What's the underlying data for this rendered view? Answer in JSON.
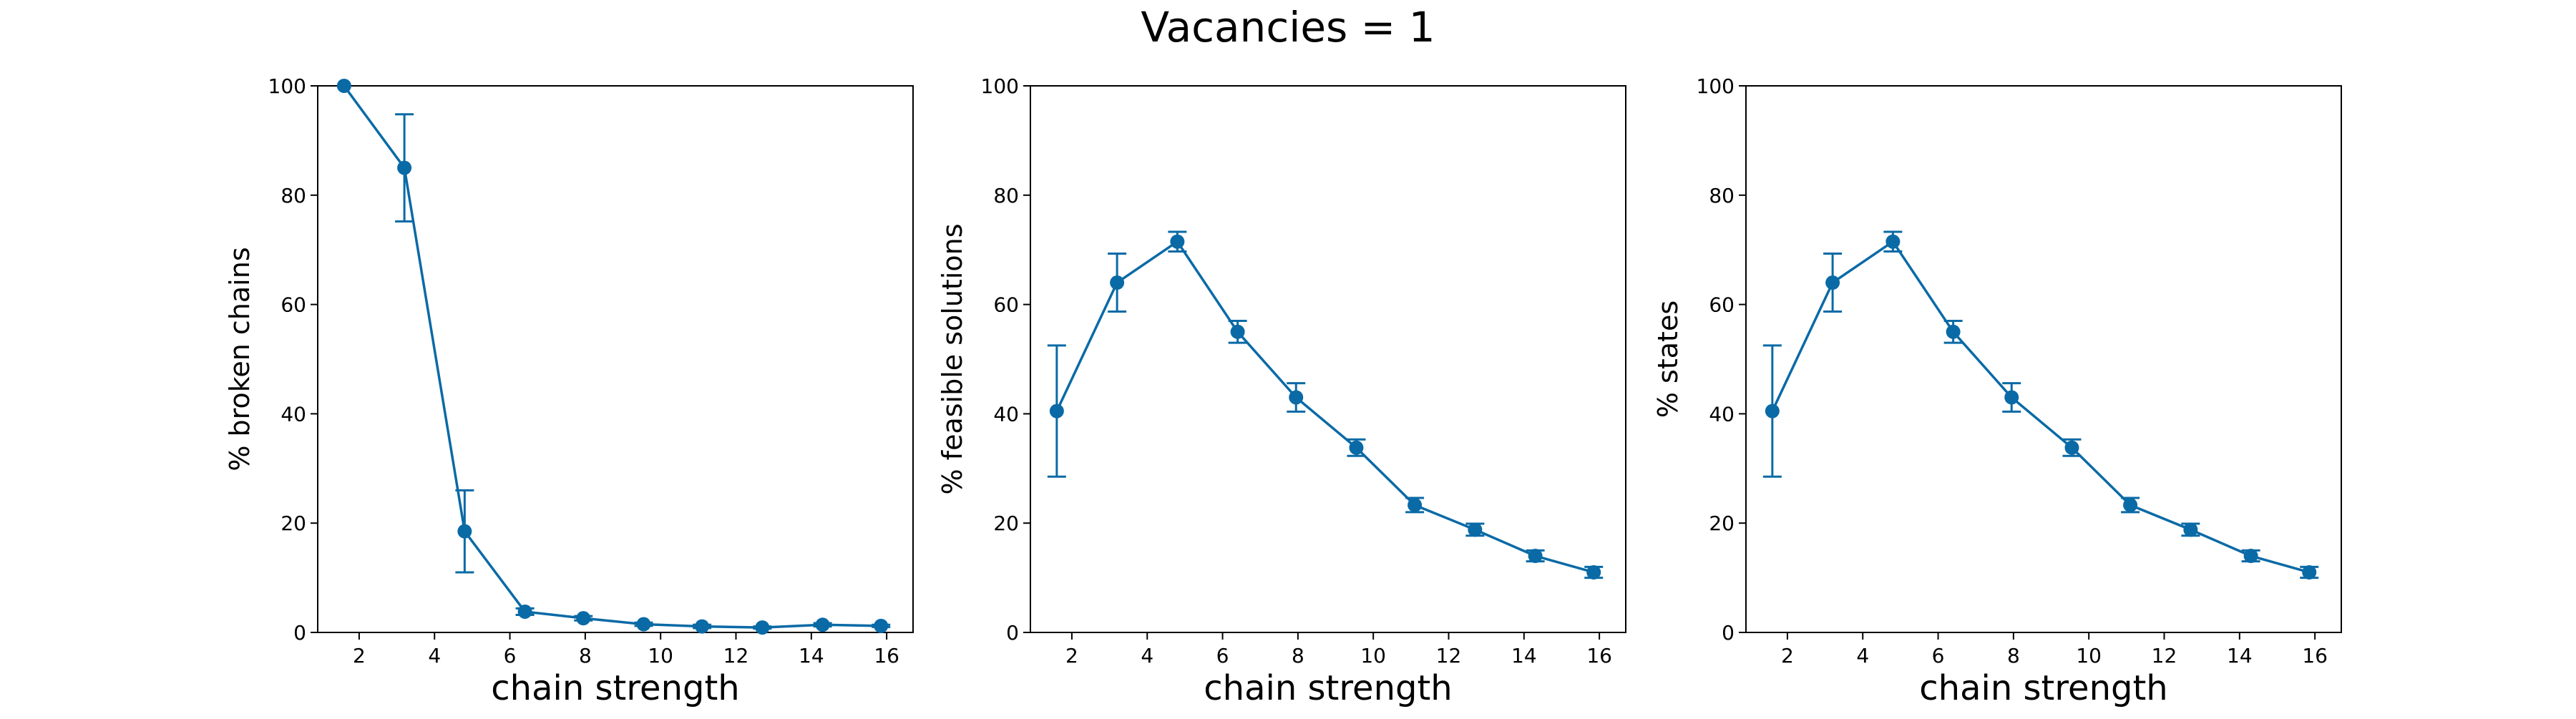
{
  "figure": {
    "suptitle": "Vacancies = 1"
  },
  "colors": {
    "series": "#0a6aa6",
    "axes": "#000000",
    "background": "#ffffff"
  },
  "chart_data": [
    {
      "type": "line",
      "title": "",
      "xlabel": "chain strength",
      "ylabel": "% broken chains",
      "xlim": [
        0.9,
        16.7
      ],
      "ylim": [
        0,
        100
      ],
      "xticks": [
        2,
        4,
        6,
        8,
        10,
        12,
        14,
        16
      ],
      "yticks": [
        0,
        20,
        40,
        60,
        80,
        100
      ],
      "grid": false,
      "markers": "circle",
      "error_bars": true,
      "x": [
        1.6,
        3.2,
        4.8,
        6.4,
        7.95,
        9.55,
        11.1,
        12.7,
        14.3,
        15.85
      ],
      "y": [
        100,
        85,
        18.5,
        3.8,
        2.6,
        1.5,
        1.1,
        0.9,
        1.4,
        1.2
      ],
      "yerr": [
        0,
        9.8,
        7.5,
        0.6,
        0.4,
        0.3,
        0.3,
        0.2,
        0.3,
        0.2
      ]
    },
    {
      "type": "line",
      "title": "",
      "xlabel": "chain strength",
      "ylabel": "% feasible solutions",
      "xlim": [
        0.9,
        16.7
      ],
      "ylim": [
        0,
        100
      ],
      "xticks": [
        2,
        4,
        6,
        8,
        10,
        12,
        14,
        16
      ],
      "yticks": [
        0,
        20,
        40,
        60,
        80,
        100
      ],
      "grid": false,
      "markers": "circle",
      "error_bars": true,
      "x": [
        1.6,
        3.2,
        4.8,
        6.4,
        7.95,
        9.55,
        11.1,
        12.7,
        14.3,
        15.85
      ],
      "y": [
        40.5,
        64,
        71.5,
        55,
        43,
        33.8,
        23.3,
        18.8,
        14,
        11
      ],
      "yerr": [
        12,
        5.3,
        1.8,
        2,
        2.6,
        1.5,
        1.3,
        1.1,
        1,
        1
      ]
    },
    {
      "type": "line",
      "title": "",
      "xlabel": "chain strength",
      "ylabel": "% states",
      "xlim": [
        0.9,
        16.7
      ],
      "ylim": [
        0,
        100
      ],
      "xticks": [
        2,
        4,
        6,
        8,
        10,
        12,
        14,
        16
      ],
      "yticks": [
        0,
        20,
        40,
        60,
        80,
        100
      ],
      "grid": false,
      "markers": "circle",
      "error_bars": true,
      "x": [
        1.6,
        3.2,
        4.8,
        6.4,
        7.95,
        9.55,
        11.1,
        12.7,
        14.3,
        15.85
      ],
      "y": [
        40.5,
        64,
        71.5,
        55,
        43,
        33.8,
        23.3,
        18.8,
        14,
        11
      ],
      "yerr": [
        12,
        5.3,
        1.8,
        2,
        2.6,
        1.5,
        1.3,
        1.1,
        1,
        1
      ]
    }
  ]
}
